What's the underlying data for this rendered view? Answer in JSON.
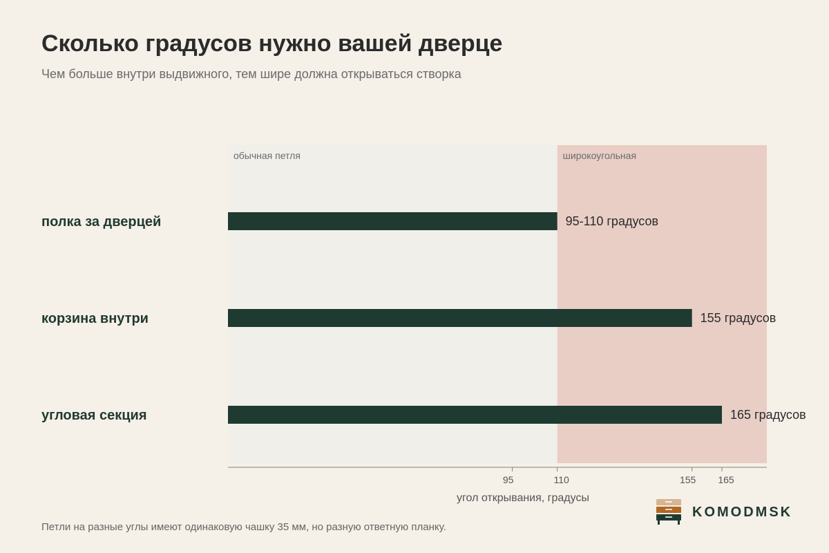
{
  "header": {
    "title": "Сколько градусов нужно вашей дверце",
    "subtitle": "Чем больше внутри выдвижного, тем шире должна открываться створка"
  },
  "footnote": "Петли на разные углы имеют одинаковую чашку 35 мм, но разную ответную планку.",
  "brand": {
    "name": "KOMODMSK",
    "colors": [
      "#d9b48f",
      "#b5651d",
      "#1f3a30"
    ]
  },
  "colors": {
    "bar": "#1f3a30",
    "zone_standard": "#f1efea",
    "zone_wide": "#e9cec6",
    "axis": "#8a8070"
  },
  "chart_data": {
    "type": "bar",
    "orientation": "horizontal",
    "categories": [
      "полка за дверцей",
      "корзина внутри",
      "угловая секция"
    ],
    "ranges": [
      [
        95,
        110
      ],
      [
        155,
        155
      ],
      [
        165,
        165
      ]
    ],
    "values": [
      110,
      155,
      165
    ],
    "value_labels": [
      "95-110 градусов",
      "155 градусов",
      "165 градусов"
    ],
    "xlabel": "угол открывания, градусы",
    "xlim": [
      0,
      180
    ],
    "ticks": [
      95,
      110,
      155,
      165
    ],
    "zones": [
      {
        "label": "обычная петля",
        "from": 0,
        "to": 110
      },
      {
        "label": "широкоугольная",
        "from": 110,
        "to": 180
      }
    ],
    "grid": false,
    "legend": "none"
  }
}
